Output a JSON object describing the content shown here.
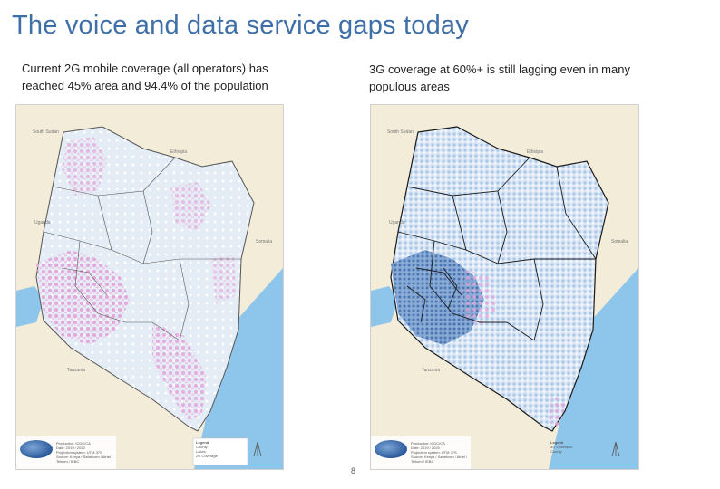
{
  "title": "The voice and data service gaps today",
  "left_panel": {
    "caption": "Current 2G mobile coverage (all operators) has reached 45% area and 94.4% of the population",
    "neighbors": {
      "north_west": "South Sudan",
      "north": "Ethiopia",
      "west": "Uganda",
      "east": "Somalia",
      "south": "Tanzania"
    },
    "footer_lines": [
      "Production: ICDC/CA",
      "Date: 2019 / 2020",
      "Projection system: UTM 37S",
      "Source: Kenya / Safaricom / Airtel / Telkom / IEBC"
    ],
    "legend_title": "Legend",
    "legend_items": [
      "County",
      "Lakes",
      "2G Coverage"
    ],
    "colors": {
      "land": "#f3ecd9",
      "coverage": "#e3a6db",
      "water": "#8ec5ea",
      "boundary": "#555555"
    }
  },
  "right_panel": {
    "caption": "3G coverage at 60%+ is still lagging even in many populous areas",
    "neighbors": {
      "north_west": "South Sudan",
      "north": "Ethiopia",
      "west": "Uganda",
      "east": "Somalia",
      "south": "Tanzania"
    },
    "footer_lines": [
      "Production: ICDC/CA",
      "Date: 2019 / 2020",
      "Projection system: UTM 37S",
      "Source: Kenya / Safaricom / Airtel / Telkom / IEBC"
    ],
    "legend_title": "Legend",
    "legend_items": [
      "3G Operators",
      "County"
    ],
    "colors": {
      "land": "#f3ecd9",
      "coverage": "#a9c7e9",
      "coverage_dense": "#4f7fbf",
      "pink": "#e3a6db",
      "water": "#8ec5ea",
      "boundary": "#1a1a1a"
    }
  },
  "page_number": "8"
}
